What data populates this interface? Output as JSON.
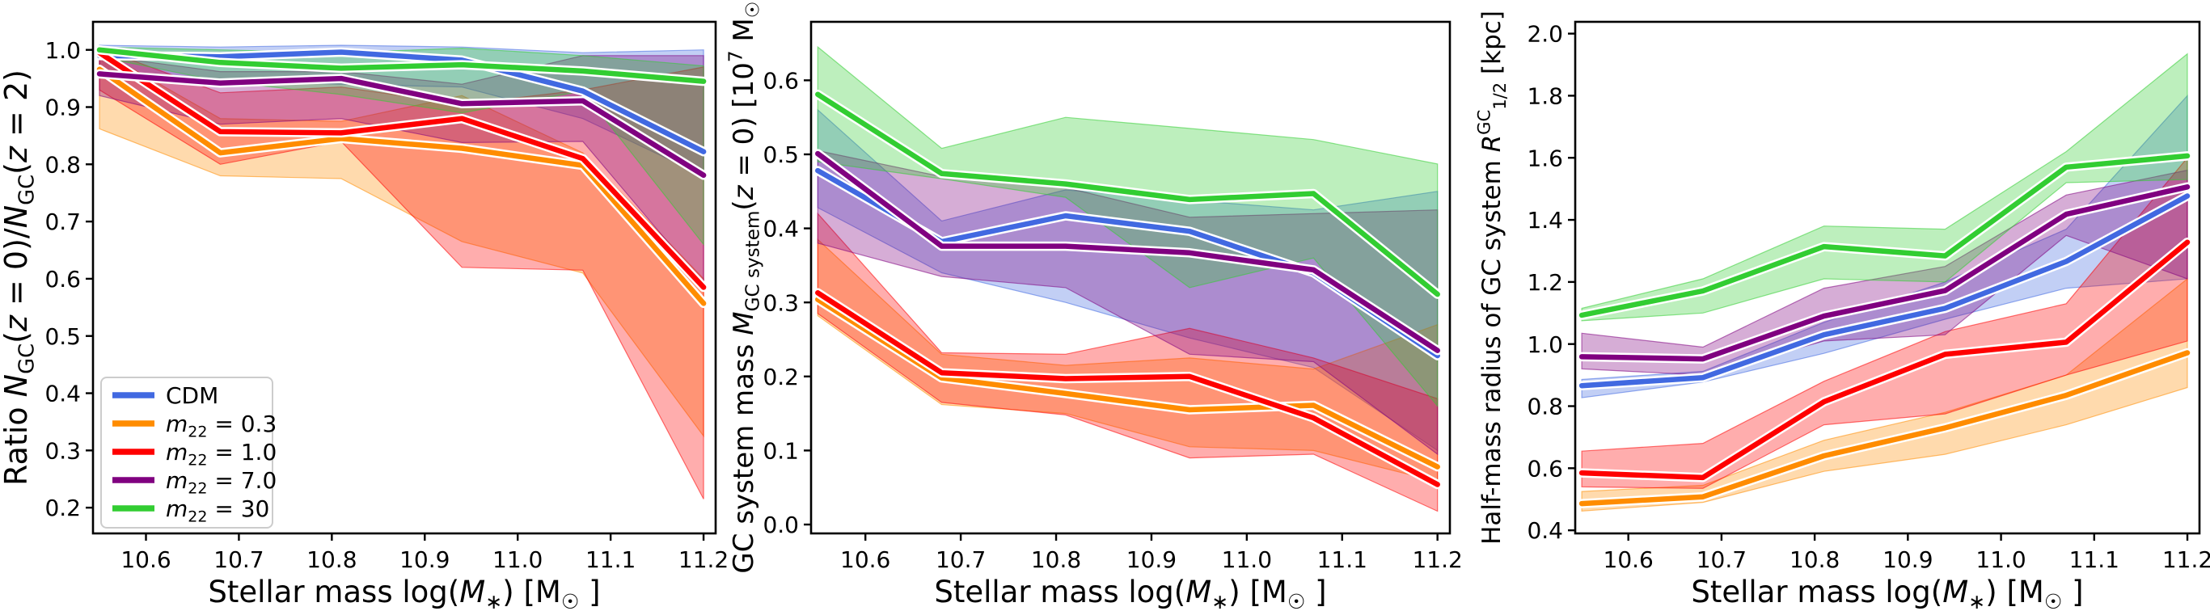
{
  "figure": {
    "background": "#ffffff",
    "description": "Three-panel line figure comparing CDM and fuzzy dark matter models (m22 values) for globular cluster systems vs stellar mass"
  },
  "legend": {
    "panel": 0,
    "position": "lower-left",
    "entries": [
      {
        "key": "cdm",
        "color": "#4169E1",
        "label": "CDM",
        "label_parts": [
          {
            "t": "CDM"
          }
        ]
      },
      {
        "key": "m22-03",
        "color": "#FF8C00",
        "label": "m22 = 0.3",
        "label_parts": [
          {
            "t": "m",
            "i": true
          },
          {
            "t": "22",
            "sub": true
          },
          {
            "t": " = 0.3"
          }
        ]
      },
      {
        "key": "m22-10",
        "color": "#FF0000",
        "label": "m22 = 1.0",
        "label_parts": [
          {
            "t": "m",
            "i": true
          },
          {
            "t": "22",
            "sub": true
          },
          {
            "t": " = 1.0"
          }
        ]
      },
      {
        "key": "m22-70",
        "color": "#800080",
        "label": "m22 = 7.0",
        "label_parts": [
          {
            "t": "m",
            "i": true
          },
          {
            "t": "22",
            "sub": true
          },
          {
            "t": " = 7.0"
          }
        ]
      },
      {
        "key": "m22-30",
        "color": "#32CD32",
        "label": "m22 = 30",
        "label_parts": [
          {
            "t": "m",
            "i": true
          },
          {
            "t": "22",
            "sub": true
          },
          {
            "t": " = 30"
          }
        ]
      }
    ]
  },
  "chart_data": [
    {
      "type": "line",
      "panel": "ratio",
      "title": "",
      "ylabel": "Ratio NGC(z = 0)/NGC(z = 2)",
      "ylabel_parts": [
        {
          "t": "Ratio "
        },
        {
          "t": "N",
          "i": true
        },
        {
          "t": "GC",
          "sub": true
        },
        {
          "t": "("
        },
        {
          "t": "z",
          "i": true
        },
        {
          "t": " = 0)/"
        },
        {
          "t": "N",
          "i": true
        },
        {
          "t": "GC",
          "sub": true
        },
        {
          "t": "("
        },
        {
          "t": "z",
          "i": true
        },
        {
          "t": " = 2)"
        }
      ],
      "xlabel": "Stellar mass log(M*) [M☉]",
      "xlabel_parts": [
        {
          "t": "Stellar mass log("
        },
        {
          "t": "M",
          "i": true
        },
        {
          "t": "∗",
          "sub": true
        },
        {
          "t": ") [M"
        },
        {
          "t": "☉",
          "sub": true
        },
        {
          "t": " ]"
        }
      ],
      "x": [
        10.55,
        10.68,
        10.81,
        10.94,
        11.07,
        11.2
      ],
      "xlim": [
        10.543,
        11.213
      ],
      "xticks": [
        10.6,
        10.7,
        10.8,
        10.9,
        11.0,
        11.1,
        11.2
      ],
      "ylim": [
        0.155,
        1.049
      ],
      "yticks": [
        0.2,
        0.3,
        0.4,
        0.5,
        0.6,
        0.7,
        0.8,
        0.9,
        1.0
      ],
      "grid": false,
      "series": [
        {
          "key": "cdm",
          "name": "CDM",
          "color": "#4169E1",
          "values": [
            0.99,
            0.988,
            0.996,
            0.982,
            0.928,
            0.822
          ],
          "band_upper": [
            1.008,
            1.005,
            1.008,
            1.005,
            0.995,
            1.0
          ],
          "band_lower": [
            0.952,
            0.945,
            0.94,
            0.935,
            0.88,
            0.78
          ]
        },
        {
          "key": "m22-03",
          "name": "m22 = 0.3",
          "color": "#FF8C00",
          "values": [
            0.966,
            0.82,
            0.845,
            0.828,
            0.798,
            0.557
          ],
          "band_upper": [
            1.0,
            0.88,
            0.875,
            0.92,
            0.82,
            0.6
          ],
          "band_lower": [
            0.862,
            0.78,
            0.775,
            0.665,
            0.61,
            0.325
          ]
        },
        {
          "key": "m22-10",
          "name": "m22 = 1.0",
          "color": "#FF0000",
          "values": [
            0.995,
            0.857,
            0.855,
            0.88,
            0.81,
            0.585
          ],
          "band_upper": [
            1.003,
            0.925,
            0.935,
            0.905,
            0.93,
            0.97
          ],
          "band_lower": [
            0.93,
            0.8,
            0.84,
            0.62,
            0.615,
            0.215
          ]
        },
        {
          "key": "m22-70",
          "name": "m22 = 7.0",
          "color": "#800080",
          "values": [
            0.958,
            0.942,
            0.95,
            0.906,
            0.911,
            0.781
          ],
          "band_upper": [
            0.99,
            0.962,
            0.962,
            0.94,
            0.99,
            0.99
          ],
          "band_lower": [
            0.92,
            0.87,
            0.88,
            0.838,
            0.84,
            0.59
          ]
        },
        {
          "key": "m22-30",
          "name": "m22 = 30",
          "color": "#32CD32",
          "values": [
            1.0,
            0.978,
            0.968,
            0.974,
            0.963,
            0.945
          ],
          "band_upper": [
            1.005,
            1.0,
            0.995,
            1.003,
            0.99,
            0.972
          ],
          "band_lower": [
            0.988,
            0.945,
            0.922,
            0.89,
            0.928,
            0.66
          ]
        }
      ]
    },
    {
      "type": "line",
      "panel": "mass",
      "title": "",
      "ylabel": "GC system mass MGCsystem(z = 0) [10^7 M☉]",
      "ylabel_parts": [
        {
          "t": "GC system mass "
        },
        {
          "t": "M",
          "i": true
        },
        {
          "t": "GC system",
          "sub": true
        },
        {
          "t": "("
        },
        {
          "t": "z",
          "i": true
        },
        {
          "t": " = 0) [10"
        },
        {
          "t": "7",
          "sup": true
        },
        {
          "t": " M"
        },
        {
          "t": "☉",
          "sub": true
        },
        {
          "t": " ]"
        }
      ],
      "xlabel": "Stellar mass log(M*) [M☉]",
      "xlabel_parts": [
        {
          "t": "Stellar mass log("
        },
        {
          "t": "M",
          "i": true
        },
        {
          "t": "∗",
          "sub": true
        },
        {
          "t": ") [M"
        },
        {
          "t": "☉",
          "sub": true
        },
        {
          "t": " ]"
        }
      ],
      "x": [
        10.55,
        10.68,
        10.81,
        10.94,
        11.07,
        11.2
      ],
      "xlim": [
        10.543,
        11.213
      ],
      "xticks": [
        10.6,
        10.7,
        10.8,
        10.9,
        11.0,
        11.1,
        11.2
      ],
      "ylim": [
        -0.012,
        0.679
      ],
      "yticks": [
        0.0,
        0.1,
        0.2,
        0.3,
        0.4,
        0.5,
        0.6
      ],
      "grid": false,
      "series": [
        {
          "key": "cdm",
          "name": "CDM",
          "color": "#4169E1",
          "values": [
            0.478,
            0.382,
            0.417,
            0.396,
            0.34,
            0.228
          ],
          "band_upper": [
            0.56,
            0.41,
            0.452,
            0.438,
            0.425,
            0.45
          ],
          "band_lower": [
            0.428,
            0.34,
            0.3,
            0.252,
            0.212,
            0.1
          ]
        },
        {
          "key": "m22-03",
          "name": "m22 = 0.3",
          "color": "#FF8C00",
          "values": [
            0.304,
            0.198,
            0.177,
            0.155,
            0.161,
            0.078
          ],
          "band_upper": [
            0.385,
            0.23,
            0.215,
            0.225,
            0.21,
            0.27
          ],
          "band_lower": [
            0.282,
            0.162,
            0.15,
            0.105,
            0.1,
            0.058
          ]
        },
        {
          "key": "m22-10",
          "name": "m22 = 1.0",
          "color": "#FF0000",
          "values": [
            0.313,
            0.205,
            0.197,
            0.2,
            0.144,
            0.054
          ],
          "band_upper": [
            0.42,
            0.232,
            0.23,
            0.265,
            0.225,
            0.17
          ],
          "band_lower": [
            0.285,
            0.165,
            0.148,
            0.09,
            0.095,
            0.018
          ]
        },
        {
          "key": "m22-70",
          "name": "m22 = 7.0",
          "color": "#800080",
          "values": [
            0.501,
            0.376,
            0.376,
            0.367,
            0.344,
            0.235
          ],
          "band_upper": [
            0.505,
            0.47,
            0.455,
            0.415,
            0.42,
            0.425
          ],
          "band_lower": [
            0.38,
            0.335,
            0.32,
            0.23,
            0.22,
            0.095
          ]
        },
        {
          "key": "m22-30",
          "name": "m22 = 30",
          "color": "#32CD32",
          "values": [
            0.581,
            0.474,
            0.46,
            0.439,
            0.447,
            0.311
          ],
          "band_upper": [
            0.645,
            0.508,
            0.55,
            0.535,
            0.52,
            0.487
          ],
          "band_lower": [
            0.49,
            0.467,
            0.442,
            0.32,
            0.36,
            0.16
          ]
        }
      ]
    },
    {
      "type": "line",
      "panel": "radius",
      "title": "",
      "ylabel": "Half-mass radius of GC system R1/2^GC [kpc]",
      "ylabel_parts": [
        {
          "t": "Half-mass radius of GC system "
        },
        {
          "t": "R",
          "i": true
        },
        {
          "t": "GC",
          "sup": true
        },
        {
          "t": "1/2",
          "sub": true
        },
        {
          "t": " [kpc]"
        }
      ],
      "xlabel": "Stellar mass log(M*) [M☉]",
      "xlabel_parts": [
        {
          "t": "Stellar mass log("
        },
        {
          "t": "M",
          "i": true
        },
        {
          "t": "∗",
          "sub": true
        },
        {
          "t": ") [M"
        },
        {
          "t": "☉",
          "sub": true
        },
        {
          "t": " ]"
        }
      ],
      "x": [
        10.55,
        10.68,
        10.81,
        10.94,
        11.07,
        11.2
      ],
      "xlim": [
        10.543,
        11.213
      ],
      "xticks": [
        10.6,
        10.7,
        10.8,
        10.9,
        11.0,
        11.1,
        11.2
      ],
      "ylim": [
        0.39,
        2.038
      ],
      "yticks": [
        0.4,
        0.6,
        0.8,
        1.0,
        1.2,
        1.4,
        1.6,
        1.8,
        2.0
      ],
      "grid": false,
      "series": [
        {
          "key": "cdm",
          "name": "CDM",
          "color": "#4169E1",
          "values": [
            0.866,
            0.892,
            1.03,
            1.115,
            1.266,
            1.477
          ],
          "band_upper": [
            0.886,
            0.912,
            1.07,
            1.2,
            1.37,
            1.8
          ],
          "band_lower": [
            0.827,
            0.878,
            0.97,
            1.08,
            1.18,
            1.21
          ]
        },
        {
          "key": "m22-03",
          "name": "m22 = 0.3",
          "color": "#FF8C00",
          "values": [
            0.486,
            0.508,
            0.64,
            0.73,
            0.835,
            0.972
          ],
          "band_upper": [
            0.525,
            0.545,
            0.69,
            0.78,
            0.9,
            1.21
          ],
          "band_lower": [
            0.462,
            0.49,
            0.59,
            0.645,
            0.74,
            0.86
          ]
        },
        {
          "key": "m22-10",
          "name": "m22 = 1.0",
          "color": "#FF0000",
          "values": [
            0.585,
            0.57,
            0.814,
            0.967,
            1.006,
            1.328
          ],
          "band_upper": [
            0.655,
            0.68,
            0.88,
            1.04,
            1.13,
            1.6
          ],
          "band_lower": [
            0.54,
            0.535,
            0.74,
            0.775,
            0.9,
            1.01
          ]
        },
        {
          "key": "m22-70",
          "name": "m22 = 7.0",
          "color": "#800080",
          "values": [
            0.959,
            0.952,
            1.09,
            1.172,
            1.418,
            1.506
          ],
          "band_upper": [
            1.035,
            0.99,
            1.18,
            1.25,
            1.48,
            1.56
          ],
          "band_lower": [
            0.92,
            0.9,
            1.01,
            1.03,
            1.35,
            1.21
          ]
        },
        {
          "key": "m22-30",
          "name": "m22 = 30",
          "color": "#32CD32",
          "values": [
            1.093,
            1.171,
            1.314,
            1.284,
            1.57,
            1.606
          ],
          "band_upper": [
            1.115,
            1.21,
            1.38,
            1.37,
            1.62,
            1.935
          ],
          "band_lower": [
            1.075,
            1.1,
            1.21,
            1.2,
            1.52,
            1.53
          ]
        }
      ]
    }
  ]
}
